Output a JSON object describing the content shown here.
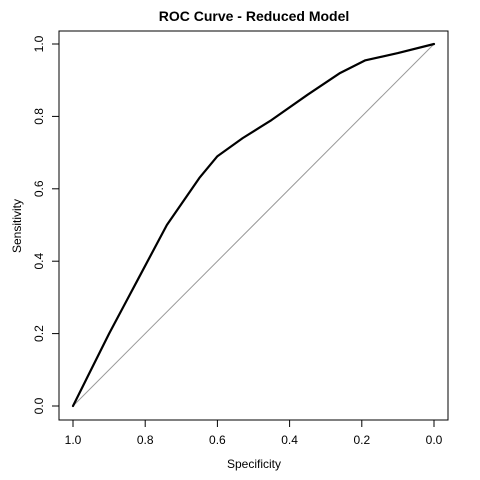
{
  "chart_data": {
    "type": "line",
    "title": "ROC Curve - Reduced Model",
    "xlabel": "Specificity",
    "ylabel": "Sensitivity",
    "xlim": [
      1.0,
      0.0
    ],
    "ylim": [
      0.0,
      1.0
    ],
    "x_reversed": true,
    "grid": false,
    "legend": "none",
    "x_ticks": [
      1.0,
      0.8,
      0.6,
      0.4,
      0.2,
      0.0
    ],
    "x_tick_labels": [
      "1.0",
      "0.8",
      "0.6",
      "0.4",
      "0.2",
      "0.0"
    ],
    "y_ticks": [
      0.0,
      0.2,
      0.4,
      0.6,
      0.8,
      1.0
    ],
    "y_tick_labels": [
      "0.0",
      "0.2",
      "0.4",
      "0.6",
      "0.8",
      "1.0"
    ],
    "reference_line": {
      "points": [
        [
          1.0,
          0.0
        ],
        [
          0.0,
          1.0
        ]
      ],
      "color": "#999999"
    },
    "series": [
      {
        "color": "#000000",
        "points": [
          [
            1.0,
            0.0
          ],
          [
            0.995,
            0.01
          ],
          [
            0.96,
            0.08
          ],
          [
            0.9,
            0.2
          ],
          [
            0.82,
            0.35
          ],
          [
            0.74,
            0.5
          ],
          [
            0.65,
            0.63
          ],
          [
            0.6,
            0.69
          ],
          [
            0.53,
            0.74
          ],
          [
            0.45,
            0.79
          ],
          [
            0.35,
            0.86
          ],
          [
            0.26,
            0.92
          ],
          [
            0.19,
            0.955
          ],
          [
            0.1,
            0.975
          ],
          [
            0.0,
            1.0
          ]
        ]
      }
    ]
  }
}
